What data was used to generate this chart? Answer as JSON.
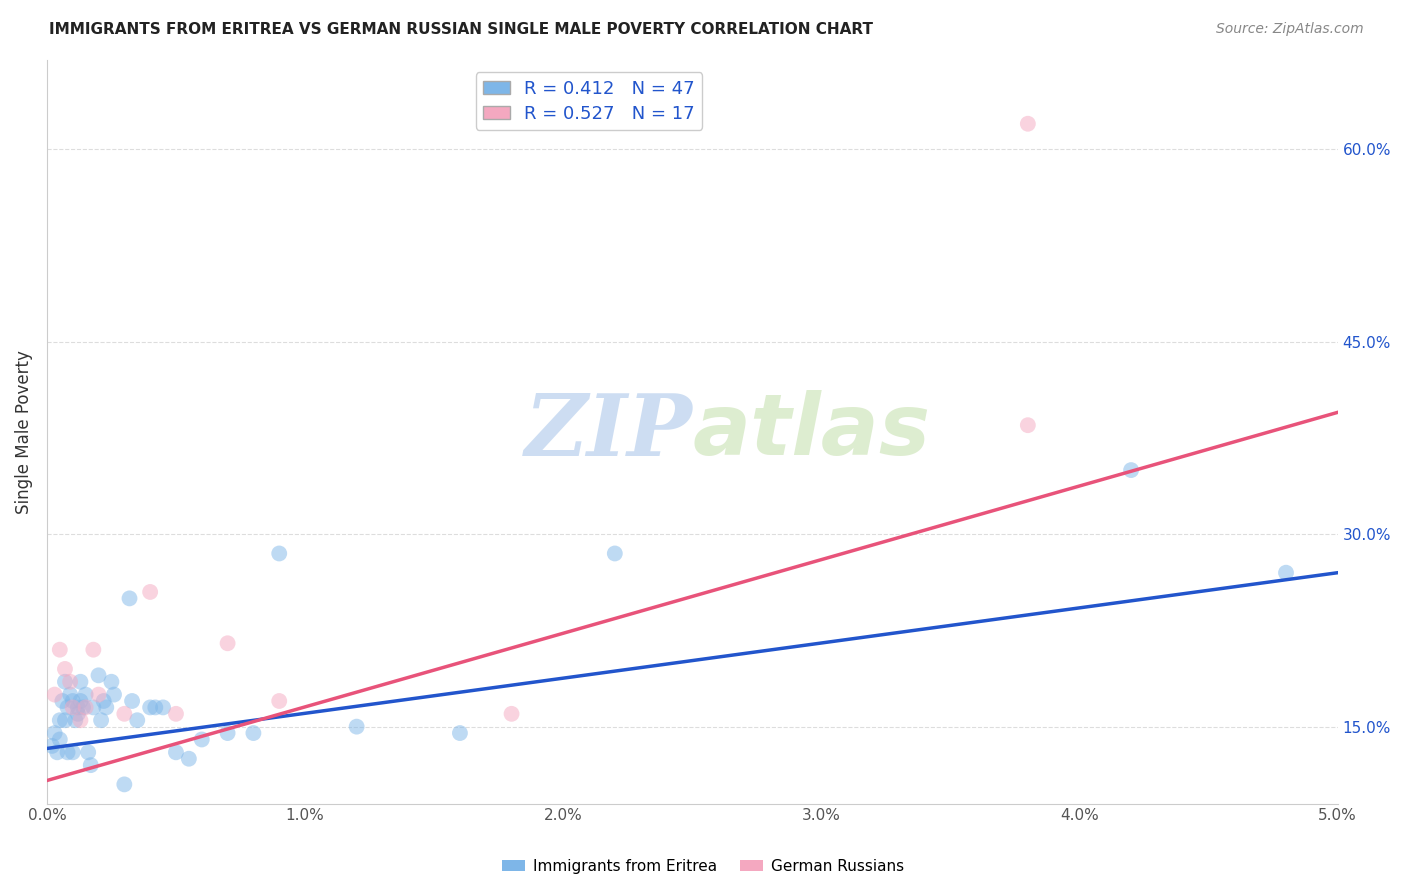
{
  "title": "IMMIGRANTS FROM ERITREA VS GERMAN RUSSIAN SINGLE MALE POVERTY CORRELATION CHART",
  "source": "Source: ZipAtlas.com",
  "ylabel": "Single Male Poverty",
  "xlim": [
    0.0,
    0.05
  ],
  "ylim": [
    0.09,
    0.67
  ],
  "xticks": [
    0.0,
    0.01,
    0.02,
    0.03,
    0.04,
    0.05
  ],
  "xtick_labels": [
    "0.0%",
    "1.0%",
    "2.0%",
    "3.0%",
    "4.0%",
    "5.0%"
  ],
  "yticks_right": [
    0.15,
    0.3,
    0.45,
    0.6
  ],
  "ytick_labels_right": [
    "15.0%",
    "30.0%",
    "45.0%",
    "60.0%"
  ],
  "series1_color": "#7EB6E8",
  "series2_color": "#F4A8C0",
  "series1_line_color": "#2255CC",
  "series2_line_color": "#E8537A",
  "series1_label": "Immigrants from Eritrea",
  "series2_label": "German Russians",
  "series1_R": 0.412,
  "series1_N": 47,
  "series2_R": 0.527,
  "series2_N": 17,
  "watermark_zip": "ZIP",
  "watermark_atlas": "atlas",
  "series1_x": [
    0.0002,
    0.0003,
    0.0004,
    0.0005,
    0.0005,
    0.0006,
    0.0007,
    0.0007,
    0.0008,
    0.0008,
    0.0009,
    0.001,
    0.001,
    0.0011,
    0.0012,
    0.0012,
    0.0013,
    0.0013,
    0.0014,
    0.0015,
    0.0016,
    0.0017,
    0.0018,
    0.002,
    0.0021,
    0.0022,
    0.0023,
    0.0025,
    0.0026,
    0.003,
    0.0032,
    0.0033,
    0.0035,
    0.004,
    0.0042,
    0.0045,
    0.005,
    0.0055,
    0.006,
    0.007,
    0.008,
    0.009,
    0.012,
    0.016,
    0.022,
    0.042,
    0.048
  ],
  "series1_y": [
    0.135,
    0.145,
    0.13,
    0.14,
    0.155,
    0.17,
    0.155,
    0.185,
    0.13,
    0.165,
    0.175,
    0.13,
    0.17,
    0.155,
    0.165,
    0.16,
    0.185,
    0.17,
    0.165,
    0.175,
    0.13,
    0.12,
    0.165,
    0.19,
    0.155,
    0.17,
    0.165,
    0.185,
    0.175,
    0.105,
    0.25,
    0.17,
    0.155,
    0.165,
    0.165,
    0.165,
    0.13,
    0.125,
    0.14,
    0.145,
    0.145,
    0.285,
    0.15,
    0.145,
    0.285,
    0.35,
    0.27
  ],
  "series2_x": [
    0.0003,
    0.0005,
    0.0007,
    0.0009,
    0.001,
    0.0013,
    0.0015,
    0.0018,
    0.002,
    0.003,
    0.004,
    0.005,
    0.007,
    0.009,
    0.018,
    0.038,
    0.038
  ],
  "series2_y": [
    0.175,
    0.21,
    0.195,
    0.185,
    0.165,
    0.155,
    0.165,
    0.21,
    0.175,
    0.16,
    0.255,
    0.16,
    0.215,
    0.17,
    0.16,
    0.62,
    0.385
  ],
  "background_color": "#FFFFFF",
  "grid_color": "#DDDDDD",
  "marker_size": 130,
  "marker_alpha": 0.5,
  "trendline1_x0": 0.0,
  "trendline1_y0": 0.133,
  "trendline1_x1": 0.05,
  "trendline1_y1": 0.27,
  "trendline2_x0": 0.0,
  "trendline2_y0": 0.108,
  "trendline2_x1": 0.05,
  "trendline2_y1": 0.395
}
